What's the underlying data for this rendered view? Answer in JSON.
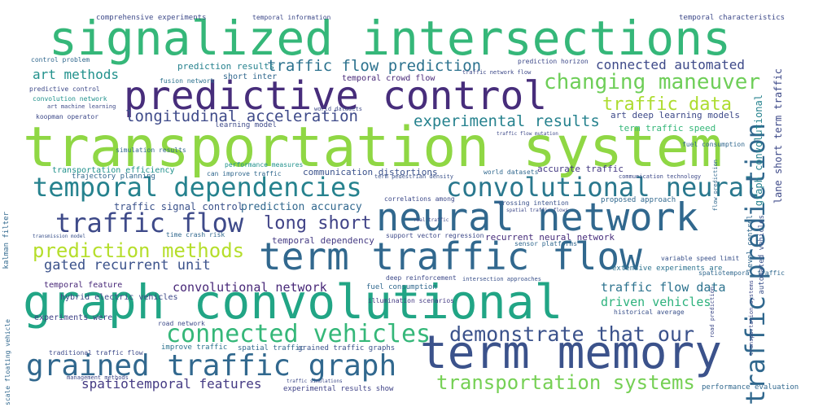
{
  "words": [
    {
      "text": "transportation system",
      "color": "#8fd744"
    },
    {
      "text": "signalized intersections",
      "color": "#35b779"
    },
    {
      "text": "graph convolutional",
      "color": "#21a585"
    },
    {
      "text": "term memory",
      "color": "#3b528b"
    },
    {
      "text": "predictive control",
      "color": "#472d7b"
    },
    {
      "text": "neural network",
      "color": "#31688e"
    },
    {
      "text": "term traffic flow",
      "color": "#31688e"
    },
    {
      "text": "temporal dependencies",
      "color": "#26828e"
    },
    {
      "text": "convolutional neural",
      "color": "#2a788e"
    },
    {
      "text": "grained traffic graph",
      "color": "#31688e"
    },
    {
      "text": "traffic flow",
      "color": "#3e4a89"
    },
    {
      "text": "connected vehicles",
      "color": "#35b779"
    },
    {
      "text": "demonstrate that our",
      "color": "#3b528b"
    },
    {
      "text": "traffic prediction",
      "color": "#31688e"
    },
    {
      "text": "changing maneuver",
      "color": "#6ece58"
    },
    {
      "text": "prediction methods",
      "color": "#b5de2b"
    },
    {
      "text": "transportation systems",
      "color": "#75d054"
    },
    {
      "text": "long short",
      "color": "#404387"
    },
    {
      "text": "traffic flow prediction",
      "color": "#2c728e"
    },
    {
      "text": "longitudinal acceleration",
      "color": "#3e4a89"
    },
    {
      "text": "traffic data",
      "color": "#addc30"
    },
    {
      "text": "experimental results",
      "color": "#26828e"
    },
    {
      "text": "gated recurrent unit",
      "color": "#3b528b"
    },
    {
      "text": "spatiotemporal features",
      "color": "#443a83"
    },
    {
      "text": "connected automated",
      "color": "#3e4a89"
    },
    {
      "text": "art methods",
      "color": "#21918c"
    },
    {
      "text": "convolutional network",
      "color": "#482878"
    },
    {
      "text": "traffic flow data",
      "color": "#2c728e"
    },
    {
      "text": "driven vehicles",
      "color": "#2db27d"
    },
    {
      "text": "graph convolutional",
      "color": "#26828e"
    },
    {
      "text": "lane short term traffic",
      "color": "#3e4a89"
    },
    {
      "text": "transportation systems",
      "color": "#3e4a89"
    },
    {
      "text": "recurrent neural network",
      "color": "#472d7b"
    },
    {
      "text": "prediction accuracy",
      "color": "#31688e"
    },
    {
      "text": "traffic signal control",
      "color": "#3b528b"
    },
    {
      "text": "temporal dependency",
      "color": "#443a83"
    },
    {
      "text": "comprehensive experiments",
      "color": "#3e4a89"
    },
    {
      "text": "prediction results",
      "color": "#26828e"
    },
    {
      "text": "short inter",
      "color": "#31688e"
    },
    {
      "text": "temporal crowd flow",
      "color": "#482878"
    },
    {
      "text": "art deep learning models",
      "color": "#3e4a89"
    },
    {
      "text": "term traffic speed",
      "color": "#35b779"
    },
    {
      "text": "communication distortions",
      "color": "#3b528b"
    },
    {
      "text": "accurate traffic",
      "color": "#443a83"
    },
    {
      "text": "transportation efficiency",
      "color": "#21918c"
    },
    {
      "text": "trajectory planning",
      "color": "#31688e"
    },
    {
      "text": "learning model",
      "color": "#3e4a89"
    },
    {
      "text": "simulation results",
      "color": "#31688e"
    },
    {
      "text": "temporal feature",
      "color": "#482878"
    },
    {
      "text": "hybrid electric vehicles",
      "color": "#3e4a89"
    },
    {
      "text": "experiments were",
      "color": "#404387"
    },
    {
      "text": "road network",
      "color": "#3e4a89"
    },
    {
      "text": "improve traffic",
      "color": "#2c728e"
    },
    {
      "text": "spatial traffic",
      "color": "#31688e"
    },
    {
      "text": "grained traffic graphs",
      "color": "#3b528b"
    },
    {
      "text": "experimental results show",
      "color": "#404387"
    },
    {
      "text": "extensive experiments are",
      "color": "#2c728e"
    },
    {
      "text": "sensor platforms",
      "color": "#31688e"
    },
    {
      "text": "support vector regression",
      "color": "#3e4a89"
    },
    {
      "text": "fuel consumption",
      "color": "#31688e"
    },
    {
      "text": "illumination scenarios",
      "color": "#443a83"
    },
    {
      "text": "historical average",
      "color": "#3b528b"
    },
    {
      "text": "performance evaluation",
      "color": "#31688e"
    },
    {
      "text": "temporal information",
      "color": "#3e4a89"
    },
    {
      "text": "temporal characteristics",
      "color": "#3e4a89"
    },
    {
      "text": "control problem",
      "color": "#31688e"
    },
    {
      "text": "predictive control",
      "color": "#3e4a89"
    },
    {
      "text": "convolution network",
      "color": "#21918c"
    },
    {
      "text": "koopman operator",
      "color": "#3e4a89"
    },
    {
      "text": "fusion network",
      "color": "#2c728e"
    },
    {
      "text": "prediction horizon",
      "color": "#3e4a89"
    },
    {
      "text": "fuel consumption",
      "color": "#31688e"
    },
    {
      "text": "kalman filter",
      "color": "#31688e"
    },
    {
      "text": "world datasets",
      "color": "#31688e"
    },
    {
      "text": "communication technology",
      "color": "#3e4a89"
    },
    {
      "text": "proposed approach",
      "color": "#31688e"
    },
    {
      "text": "crossing intention",
      "color": "#3b528b"
    },
    {
      "text": "correlations among",
      "color": "#3e4a89"
    },
    {
      "text": "variable speed limit",
      "color": "#3b528b"
    },
    {
      "text": "spatiotemporal traffic",
      "color": "#31688e"
    },
    {
      "text": "level control",
      "color": "#31688e"
    },
    {
      "text": "deep reinforcement",
      "color": "#3e4a89"
    },
    {
      "text": "intersection approaches",
      "color": "#3b528b"
    },
    {
      "text": "time crash risk",
      "color": "#31688e"
    },
    {
      "text": "automated vehicles",
      "color": "#3b528b"
    },
    {
      "text": "performance measures",
      "color": "#21918c"
    },
    {
      "text": "can improve traffic",
      "color": "#31688e"
    },
    {
      "text": "term pedestrian density",
      "color": "#3b528b"
    },
    {
      "text": "traditional traffic flow",
      "color": "#3e4a89"
    },
    {
      "text": "management methods",
      "color": "#3e4a89"
    },
    {
      "text": "scale floating vehicle",
      "color": "#31688e"
    },
    {
      "text": "traffic network flow",
      "color": "#3e4a89"
    },
    {
      "text": "flow prediction",
      "color": "#31688e"
    },
    {
      "text": "road prediction",
      "color": "#3e4a89"
    },
    {
      "text": "transmission model",
      "color": "#3b528b"
    },
    {
      "text": "art machine learning",
      "color": "#3e4a89"
    },
    {
      "text": "world datasets",
      "color": "#3e4a89"
    },
    {
      "text": "traffic simulations",
      "color": "#3e4a89"
    },
    {
      "text": "traffic flow mutation",
      "color": "#3e4a89"
    },
    {
      "text": "spatial traffic flows",
      "color": "#3e4a89"
    },
    {
      "text": "real traffic",
      "color": "#3e4a89"
    }
  ]
}
